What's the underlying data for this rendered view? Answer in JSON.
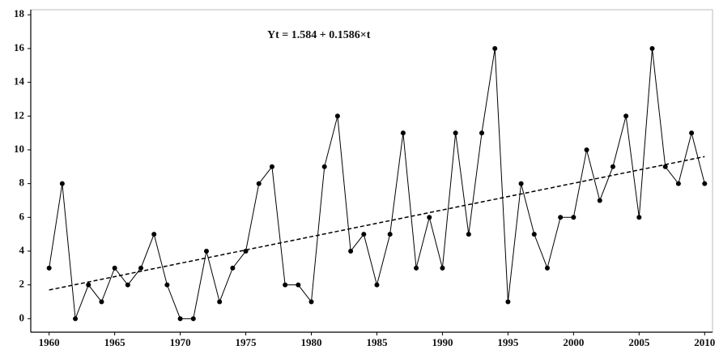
{
  "chart_data": {
    "type": "line",
    "annotation": "Yt = 1.584 + 0.1586×t",
    "x": [
      1960,
      1961,
      1962,
      1963,
      1964,
      1965,
      1966,
      1967,
      1968,
      1969,
      1970,
      1971,
      1972,
      1973,
      1974,
      1975,
      1976,
      1977,
      1978,
      1979,
      1980,
      1981,
      1982,
      1983,
      1984,
      1985,
      1986,
      1987,
      1988,
      1989,
      1990,
      1991,
      1992,
      1993,
      1994,
      1995,
      1996,
      1997,
      1998,
      1999,
      2000,
      2001,
      2002,
      2003,
      2004,
      2005,
      2006,
      2007,
      2008,
      2009,
      2010
    ],
    "series": [
      {
        "color": "#000000",
        "values": [
          3,
          8,
          0,
          2,
          1,
          3,
          2,
          3,
          5,
          2,
          0,
          0,
          4,
          1,
          3,
          4,
          8,
          9,
          2,
          2,
          1,
          9,
          12,
          4,
          5,
          2,
          5,
          11,
          3,
          6,
          3,
          11,
          5,
          11,
          16,
          1,
          8,
          5,
          3,
          6,
          6,
          10,
          7,
          9,
          12,
          6,
          16,
          9,
          8,
          11,
          8
        ]
      }
    ],
    "trend": {
      "x": [
        1960,
        2010
      ],
      "values": [
        1.7,
        9.6
      ],
      "color": "#000000"
    },
    "xlim": [
      1958.6,
      2010.6
    ],
    "ylim": [
      -0.8,
      18.3
    ],
    "xticks": [
      1960,
      1965,
      1970,
      1975,
      1980,
      1985,
      1990,
      1995,
      2000,
      2005,
      2010
    ],
    "yticks": [
      0,
      2,
      4,
      6,
      8,
      10,
      12,
      14,
      16,
      18
    ]
  }
}
